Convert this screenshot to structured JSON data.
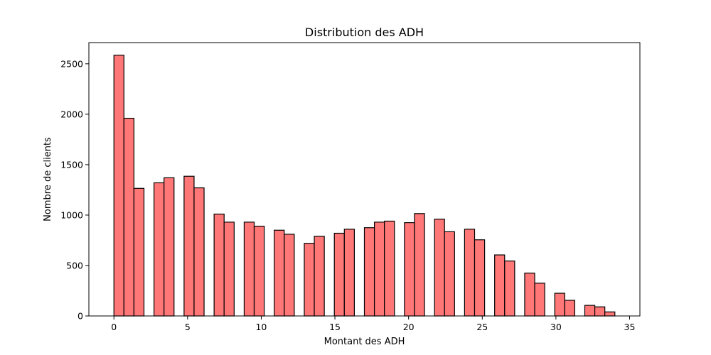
{
  "chart_data": {
    "type": "bar",
    "title": "Distribution des ADH",
    "xlabel": "Montant des ADH",
    "ylabel": "Nombre de clients",
    "xlim": [
      -1.7,
      35.7
    ],
    "ylim": [
      0,
      2710
    ],
    "xticks": [
      0,
      5,
      10,
      15,
      20,
      25,
      30,
      35
    ],
    "yticks": [
      0,
      500,
      1000,
      1500,
      2000,
      2500
    ],
    "bar_color": "#ff7777",
    "edge_color": "#000000",
    "bin_width": 0.68,
    "bins": [
      {
        "x": 0.0,
        "value": 2585
      },
      {
        "x": 0.68,
        "value": 1960
      },
      {
        "x": 1.36,
        "value": 1265
      },
      {
        "x": 2.72,
        "value": 1320
      },
      {
        "x": 3.4,
        "value": 1370
      },
      {
        "x": 4.76,
        "value": 1385
      },
      {
        "x": 5.44,
        "value": 1270
      },
      {
        "x": 6.8,
        "value": 1010
      },
      {
        "x": 7.48,
        "value": 930
      },
      {
        "x": 8.84,
        "value": 930
      },
      {
        "x": 9.52,
        "value": 890
      },
      {
        "x": 10.88,
        "value": 850
      },
      {
        "x": 11.56,
        "value": 810
      },
      {
        "x": 12.92,
        "value": 720
      },
      {
        "x": 13.6,
        "value": 790
      },
      {
        "x": 14.96,
        "value": 820
      },
      {
        "x": 15.64,
        "value": 860
      },
      {
        "x": 17.0,
        "value": 875
      },
      {
        "x": 17.68,
        "value": 930
      },
      {
        "x": 18.36,
        "value": 940
      },
      {
        "x": 19.72,
        "value": 925
      },
      {
        "x": 20.4,
        "value": 1015
      },
      {
        "x": 21.76,
        "value": 960
      },
      {
        "x": 22.44,
        "value": 835
      },
      {
        "x": 23.8,
        "value": 860
      },
      {
        "x": 24.48,
        "value": 755
      },
      {
        "x": 25.84,
        "value": 605
      },
      {
        "x": 26.52,
        "value": 545
      },
      {
        "x": 27.88,
        "value": 425
      },
      {
        "x": 28.56,
        "value": 325
      },
      {
        "x": 29.92,
        "value": 225
      },
      {
        "x": 30.6,
        "value": 155
      },
      {
        "x": 31.96,
        "value": 105
      },
      {
        "x": 32.64,
        "value": 90
      },
      {
        "x": 33.32,
        "value": 40
      }
    ]
  }
}
